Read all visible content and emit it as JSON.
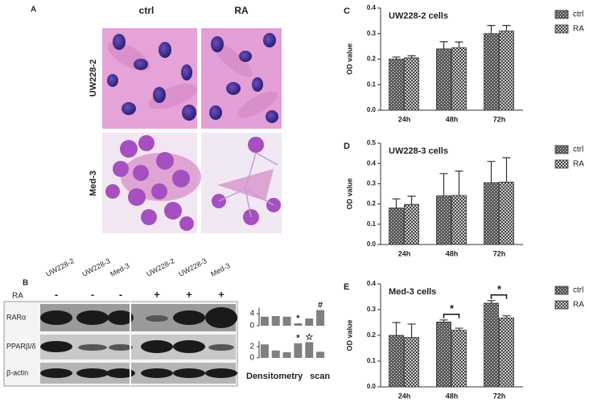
{
  "panel_a": {
    "label": "A",
    "columns": [
      "ctrl",
      "RA"
    ],
    "rows": [
      "UW228-2",
      "Med-3"
    ]
  },
  "panel_b": {
    "label": "B",
    "lanes": [
      "UW228-2",
      "UW228-3",
      "Med-3",
      "UW228-2",
      "UW228-3",
      "Med-3"
    ],
    "treatment_label": "RA",
    "treatment": [
      "-",
      "-",
      "-",
      "+",
      "+",
      "+"
    ],
    "bands": [
      "RARα",
      "PPARβ/δ",
      "β-actin"
    ],
    "caption": [
      "Densitometry",
      "scan"
    ]
  },
  "chart_data": [
    {
      "type": "bar",
      "panel": "C",
      "title": "UW228-2 cells",
      "ylabel": "OD value",
      "categories": [
        "24h",
        "48h",
        "72h"
      ],
      "series": [
        {
          "name": "ctrl",
          "color": "#5a5a5a",
          "values": [
            0.2,
            0.24,
            0.3
          ],
          "errors": [
            0.008,
            0.028,
            0.032
          ]
        },
        {
          "name": "RA",
          "color": "#f2f2f2",
          "values": [
            0.205,
            0.245,
            0.31
          ],
          "errors": [
            0.008,
            0.022,
            0.022
          ]
        }
      ],
      "ylim": [
        0,
        0.4
      ],
      "yticks": [
        {
          "value": 0,
          "label": "0.0"
        },
        0.1,
        0.2,
        0.3,
        0.4
      ]
    },
    {
      "type": "bar",
      "panel": "D",
      "title": "UW228-3 cells",
      "ylabel": "OD value",
      "categories": [
        "24h",
        "48h",
        "72h"
      ],
      "series": [
        {
          "name": "ctrl",
          "color": "#5a5a5a",
          "values": [
            0.18,
            0.24,
            0.305
          ],
          "errors": [
            0.045,
            0.11,
            0.105
          ]
        },
        {
          "name": "RA",
          "color": "#f2f2f2",
          "values": [
            0.198,
            0.242,
            0.308
          ],
          "errors": [
            0.04,
            0.12,
            0.12
          ]
        }
      ],
      "ylim": [
        0,
        0.5
      ],
      "yticks": [
        {
          "value": 0,
          "label": "0.0"
        },
        0.1,
        0.2,
        0.3,
        0.4,
        0.5
      ]
    },
    {
      "type": "bar",
      "panel": "E",
      "title": "Med-3 cells",
      "ylabel": "OD value",
      "categories": [
        "24h",
        "48h",
        "72h"
      ],
      "series": [
        {
          "name": "ctrl",
          "color": "#5a5a5a",
          "values": [
            0.2,
            0.252,
            0.325
          ],
          "errors": [
            0.05,
            0.008,
            0.01
          ]
        },
        {
          "name": "RA",
          "color": "#f2f2f2",
          "values": [
            0.192,
            0.22,
            0.268
          ],
          "errors": [
            0.052,
            0.008,
            0.008
          ]
        }
      ],
      "significance": [
        null,
        "*",
        "*"
      ],
      "ylim": [
        0,
        0.4
      ],
      "yticks": [
        {
          "value": 0,
          "label": "0.0"
        },
        0.1,
        0.2,
        0.3,
        0.4
      ]
    },
    {
      "type": "mini-bar",
      "values": [
        3,
        3.2,
        3,
        0.8,
        2.4,
        5.2
      ],
      "markers": [
        null,
        null,
        null,
        "*",
        null,
        "#"
      ],
      "color": "#808080",
      "ylim": [
        0,
        6
      ],
      "yticks": [
        0,
        4
      ]
    },
    {
      "type": "mini-bar",
      "values": [
        2.4,
        1.3,
        1.0,
        2.6,
        2.8,
        1.1
      ],
      "markers": [
        null,
        null,
        null,
        "*",
        "☆",
        null
      ],
      "color": "#808080",
      "ylim": [
        0,
        3
      ],
      "yticks": [
        0,
        2
      ]
    }
  ]
}
